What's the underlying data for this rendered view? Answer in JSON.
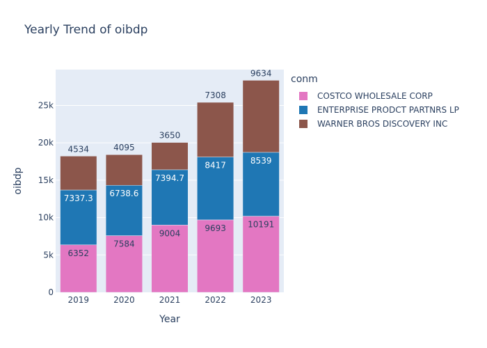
{
  "chart_data": {
    "type": "bar",
    "stacked": true,
    "title": "Yearly Trend of oibdp",
    "xlabel": "Year",
    "ylabel": "oibdp",
    "categories": [
      "2019",
      "2020",
      "2021",
      "2022",
      "2023"
    ],
    "ylim": [
      0,
      29800
    ],
    "yticks": [
      0,
      5000,
      10000,
      15000,
      20000,
      25000
    ],
    "ytick_labels": [
      "0",
      "5k",
      "10k",
      "15k",
      "20k",
      "25k"
    ],
    "legend_title": "conm",
    "legend_position": "top-right",
    "grid": true,
    "series": [
      {
        "name": "COSTCO WHOLESALE CORP",
        "color": "#e377c2",
        "values": [
          6352,
          7584,
          9004,
          9693,
          10191
        ],
        "labels": [
          "6352",
          "7584",
          "9004",
          "9693",
          "10191"
        ]
      },
      {
        "name": "ENTERPRISE PRODCT PARTNRS LP",
        "color": "#1f77b4",
        "values": [
          7337.3,
          6738.6,
          7394.7,
          8417,
          8539
        ],
        "labels": [
          "7337.3",
          "6738.6",
          "7394.7",
          "8417",
          "8539"
        ]
      },
      {
        "name": "WARNER BROS DISCOVERY INC",
        "color": "#8c564b",
        "values": [
          4534,
          4095,
          3650,
          7308,
          9634
        ],
        "labels": [
          "4534",
          "4095",
          "3650",
          "7308",
          "9634"
        ]
      }
    ]
  }
}
